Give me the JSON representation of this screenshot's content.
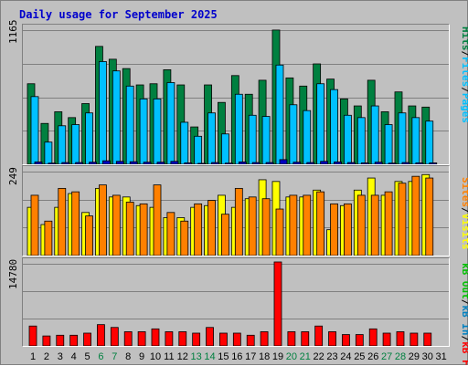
{
  "title": "Daily usage for September 2025",
  "colors": {
    "hits": "#008040",
    "files": "#00c0ff",
    "pages": "#00c0ff",
    "visits": "#ffff00",
    "sites": "#ff8000",
    "kbin": "#0080c0",
    "kbout": "#00c000",
    "kbf": "#ff0000",
    "weekend_label": "#008040",
    "weekday_label": "#000000"
  },
  "legends": {
    "top": [
      "Pages",
      "/",
      "Files",
      "/",
      "Hits"
    ],
    "middle": [
      "Visits",
      "/",
      "Sites"
    ],
    "bottom": [
      "kB F",
      "/",
      "kB In",
      "/",
      "kB Out"
    ]
  },
  "chart_data": [
    {
      "type": "bar",
      "title": "Daily usage for September 2025",
      "ymax_label": "1165",
      "ylim": [
        0,
        1165
      ],
      "categories": [
        "1",
        "2",
        "3",
        "4",
        "5",
        "6",
        "7",
        "8",
        "9",
        "10",
        "11",
        "12",
        "13",
        "14",
        "15",
        "16",
        "17",
        "18",
        "19",
        "20",
        "21",
        "22",
        "23",
        "24",
        "25",
        "26",
        "27",
        "28",
        "29",
        "30",
        "31"
      ],
      "weekend_days": [
        "6",
        "7",
        "13",
        "14",
        "20",
        "21",
        "27",
        "28"
      ],
      "series": [
        {
          "name": "Hits",
          "values": [
            690,
            350,
            450,
            400,
            520,
            1010,
            900,
            820,
            680,
            690,
            810,
            680,
            320,
            680,
            530,
            760,
            600,
            720,
            1150,
            740,
            670,
            860,
            730,
            560,
            500,
            720,
            450,
            620,
            500,
            490,
            0
          ]
        },
        {
          "name": "Files",
          "values": [
            580,
            190,
            330,
            340,
            440,
            880,
            800,
            670,
            560,
            560,
            700,
            360,
            240,
            440,
            260,
            600,
            420,
            410,
            850,
            510,
            460,
            690,
            640,
            420,
            400,
            500,
            340,
            440,
            400,
            370,
            0
          ]
        },
        {
          "name": "Pages",
          "values": [
            20,
            10,
            15,
            15,
            18,
            30,
            25,
            22,
            18,
            18,
            25,
            12,
            8,
            15,
            10,
            20,
            15,
            15,
            40,
            18,
            15,
            25,
            20,
            15,
            12,
            18,
            10,
            15,
            12,
            12,
            0
          ]
        }
      ]
    },
    {
      "type": "bar",
      "ymax_label": "249",
      "ylim": [
        0,
        249
      ],
      "series": [
        {
          "name": "Visits",
          "values": [
            140,
            90,
            140,
            180,
            125,
            195,
            170,
            170,
            145,
            140,
            110,
            110,
            140,
            145,
            175,
            140,
            165,
            220,
            215,
            170,
            170,
            190,
            75,
            145,
            190,
            225,
            175,
            215,
            215,
            235,
            0
          ]
        },
        {
          "name": "Sites",
          "values": [
            175,
            100,
            195,
            185,
            115,
            205,
            175,
            155,
            150,
            205,
            125,
            100,
            150,
            160,
            120,
            195,
            170,
            165,
            135,
            175,
            175,
            185,
            150,
            150,
            175,
            175,
            185,
            210,
            230,
            225,
            0
          ]
        }
      ]
    },
    {
      "type": "bar",
      "ymax_label": "14780",
      "ylim": [
        0,
        14780
      ],
      "series": [
        {
          "name": "kB F",
          "values": [
            3500,
            1750,
            1880,
            1880,
            2250,
            3750,
            3250,
            2500,
            2500,
            3000,
            2500,
            2500,
            2250,
            3250,
            2250,
            2250,
            1880,
            2500,
            14780,
            2500,
            2500,
            3500,
            2500,
            2000,
            2000,
            3000,
            2250,
            2500,
            2250,
            2250,
            0
          ]
        }
      ]
    }
  ]
}
